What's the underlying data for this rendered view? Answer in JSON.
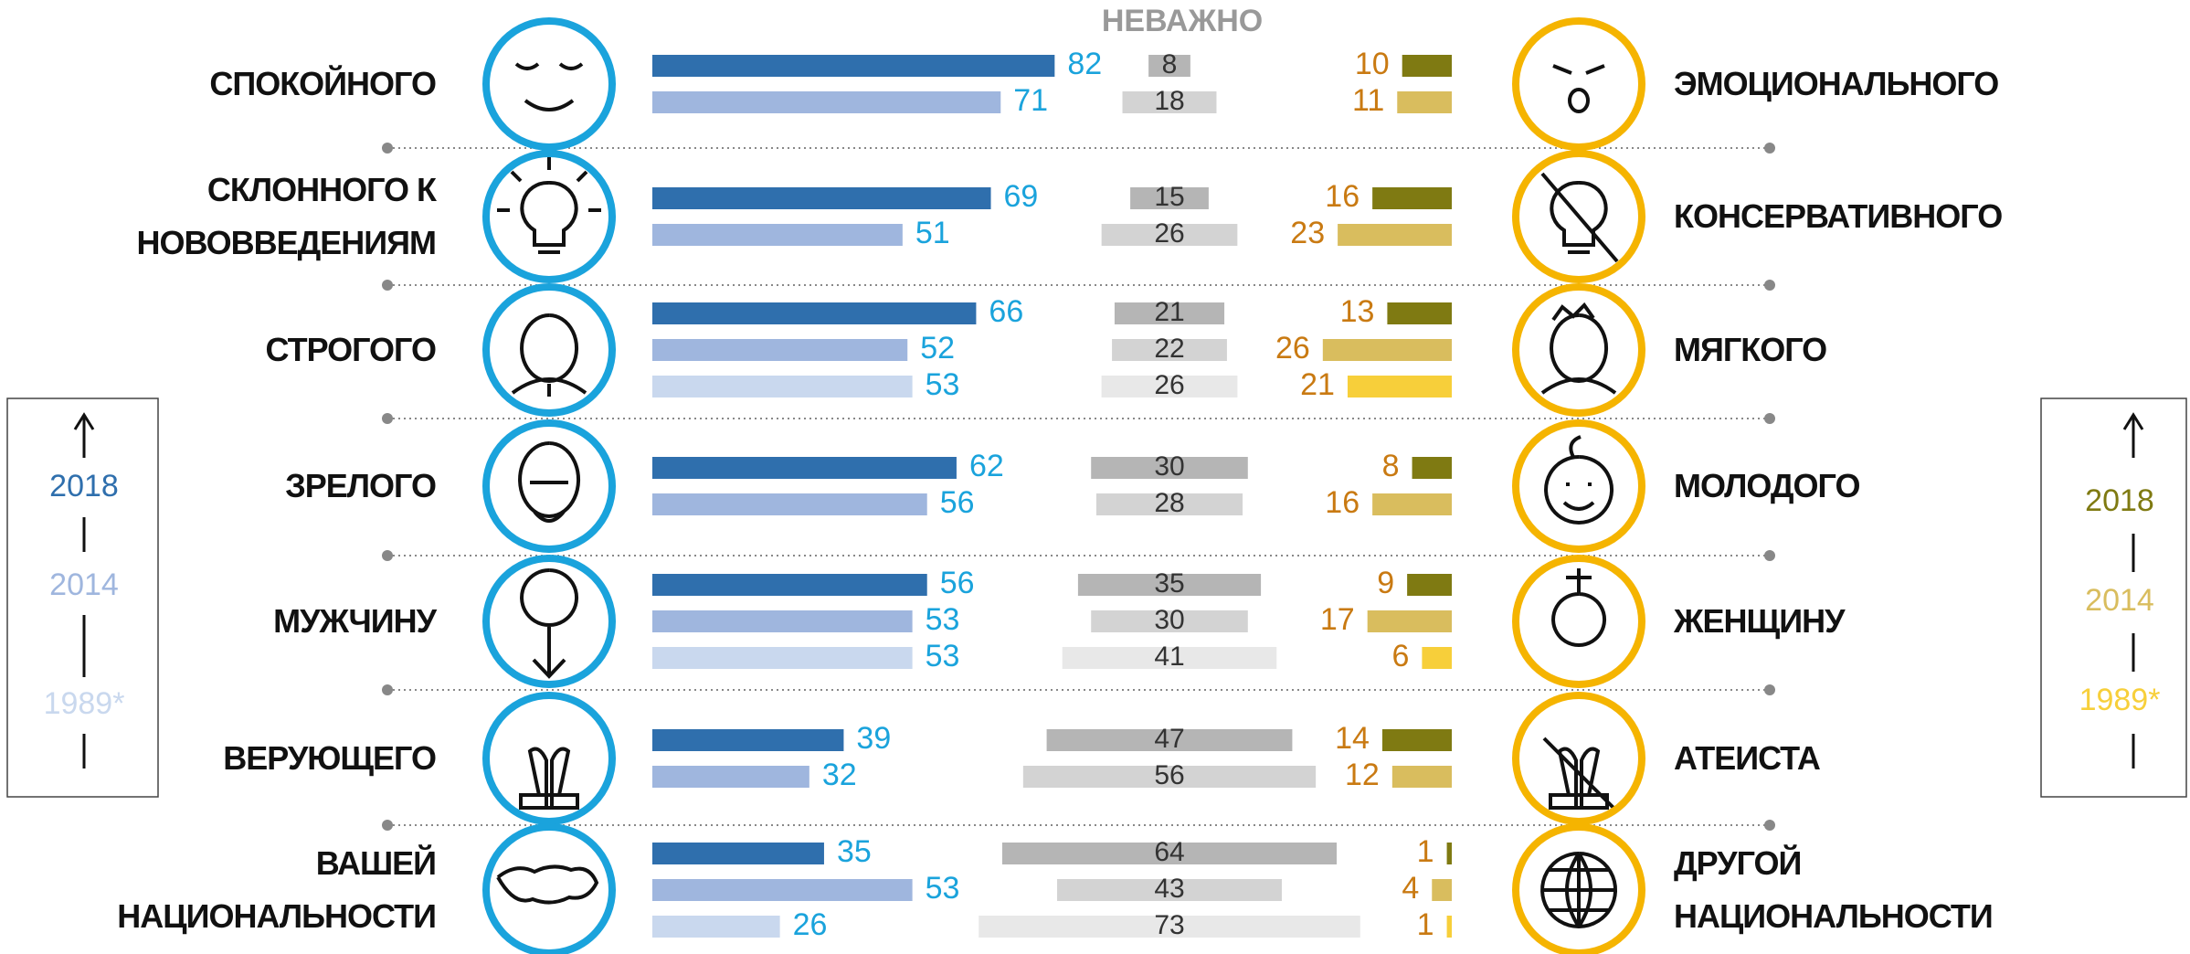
{
  "chart_data": {
    "type": "butterfly",
    "neutral_title": "НЕВАЖНО",
    "categories": [
      "СПОКОЙНОГО",
      "СКЛОННОГО К\nНОВОВВЕДЕНИЯМ",
      "СТРОГОГО",
      "ЗРЕЛОГО",
      "МУЖЧИНУ",
      "ВЕРУЮЩЕГО",
      "ВАШЕЙ\nНАЦИОНАЛЬНОСТИ"
    ],
    "right_categories": [
      "ЭМОЦИОНАЛЬНОГО",
      "КОНСЕРВАТИВНОГО",
      "МЯГКОГО",
      "МОЛОДОГО",
      "ЖЕНЩИНУ",
      "АТЕИСТА",
      "ДРУГОЙ\nНАЦИОНАЛЬНОСТИ"
    ],
    "left_series": [
      {
        "name": "2018",
        "color": "#2f6fad",
        "values": [
          82,
          69,
          66,
          62,
          56,
          39,
          35
        ]
      },
      {
        "name": "2014",
        "color": "#9fb6de",
        "values": [
          71,
          51,
          52,
          56,
          53,
          32,
          53
        ]
      },
      {
        "name": "1989*",
        "color": "#c9d8ee",
        "values": [
          null,
          null,
          53,
          null,
          53,
          null,
          26
        ]
      }
    ],
    "neutral_series": [
      {
        "color": "#b5b5b5",
        "values": [
          8,
          15,
          21,
          30,
          35,
          47,
          64
        ]
      },
      {
        "color": "#d3d3d3",
        "values": [
          18,
          26,
          22,
          28,
          30,
          56,
          43
        ]
      },
      {
        "color": "#e8e8e8",
        "values": [
          null,
          null,
          26,
          null,
          41,
          null,
          73
        ]
      }
    ],
    "right_series": [
      {
        "name": "2018",
        "color": "#7f7a12",
        "values": [
          10,
          16,
          13,
          8,
          9,
          14,
          1
        ]
      },
      {
        "name": "2014",
        "color": "#d9bd5e",
        "values": [
          11,
          23,
          26,
          16,
          17,
          12,
          4
        ]
      },
      {
        "name": "1989*",
        "color": "#f7cf3a",
        "values": [
          null,
          null,
          21,
          null,
          6,
          null,
          1
        ]
      }
    ]
  }
}
